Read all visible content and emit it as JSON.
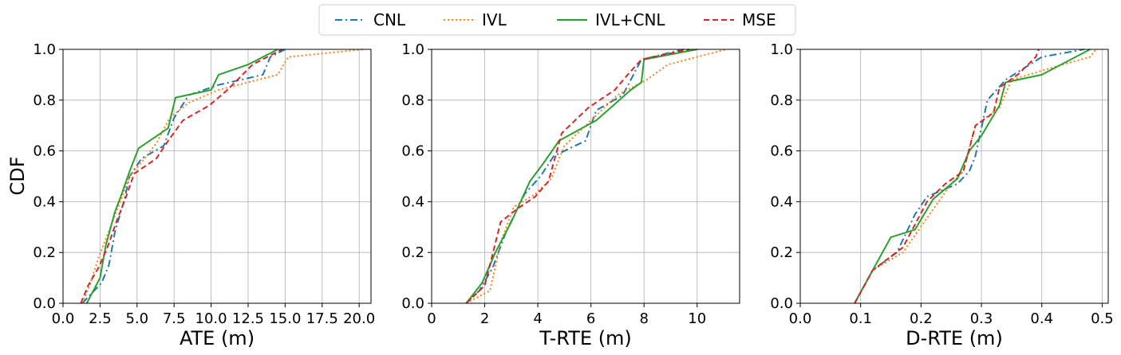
{
  "figure": {
    "ylabel": "CDF"
  },
  "legend": {
    "placement": "top-center",
    "entries": [
      {
        "name": "CNL",
        "color": "#1f77b4",
        "dash": "dashdot"
      },
      {
        "name": "IVL",
        "color": "#ff7f0e",
        "dash": "dotted"
      },
      {
        "name": "IVL+CNL",
        "color": "#2ca02c",
        "dash": "solid"
      },
      {
        "name": "MSE",
        "color": "#d62728",
        "dash": "dashed"
      }
    ]
  },
  "chart_data": [
    {
      "type": "line",
      "xlabel": "ATE (m)",
      "ylabel": "CDF",
      "xlim": [
        0,
        20.8
      ],
      "ylim": [
        0,
        1
      ],
      "grid": true,
      "xticks": [
        0,
        2.5,
        5,
        7.5,
        10,
        12.5,
        15,
        17.5,
        20
      ],
      "xtick_labels": [
        "0.0",
        "2.5",
        "5.0",
        "7.5",
        "10.0",
        "12.5",
        "15.0",
        "17.5",
        "20.0"
      ],
      "yticks": [
        0,
        0.2,
        0.4,
        0.6,
        0.8,
        1.0
      ],
      "ytick_labels": [
        "0.0",
        "0.2",
        "0.4",
        "0.6",
        "0.8",
        "1.0"
      ],
      "series": [
        {
          "name": "CNL",
          "x": [
            1.3,
            2.6,
            3.1,
            3.5,
            4.1,
            4.5,
            5.3,
            6.8,
            7.5,
            8.5,
            10.5,
            13.5,
            14.0,
            15.0
          ],
          "y": [
            0.0,
            0.08,
            0.15,
            0.28,
            0.4,
            0.5,
            0.57,
            0.62,
            0.73,
            0.82,
            0.86,
            0.9,
            0.97,
            1.0
          ]
        },
        {
          "name": "IVL",
          "x": [
            1.3,
            1.8,
            2.4,
            3.2,
            3.8,
            4.5,
            5.5,
            6.3,
            7.2,
            8.5,
            10.5,
            14.5,
            15.2,
            20.3
          ],
          "y": [
            0.0,
            0.07,
            0.18,
            0.3,
            0.39,
            0.5,
            0.57,
            0.63,
            0.73,
            0.79,
            0.84,
            0.9,
            0.97,
            1.0
          ]
        },
        {
          "name": "IVL+CNL",
          "x": [
            1.6,
            2.5,
            2.9,
            3.5,
            3.9,
            4.5,
            5.1,
            7.1,
            7.6,
            10.0,
            10.5,
            12.5,
            14.5
          ],
          "y": [
            0.0,
            0.1,
            0.23,
            0.36,
            0.42,
            0.52,
            0.61,
            0.69,
            0.81,
            0.84,
            0.9,
            0.94,
            1.0
          ]
        },
        {
          "name": "MSE",
          "x": [
            1.2,
            1.7,
            2.4,
            3.0,
            3.6,
            4.2,
            4.8,
            6.3,
            7.1,
            8.1,
            9.9,
            11.1,
            12.8,
            14.8
          ],
          "y": [
            0.0,
            0.07,
            0.14,
            0.22,
            0.32,
            0.41,
            0.51,
            0.57,
            0.64,
            0.72,
            0.78,
            0.84,
            0.94,
            1.0
          ]
        }
      ]
    },
    {
      "type": "line",
      "xlabel": "T-RTE (m)",
      "ylabel": "",
      "xlim": [
        0,
        11.6
      ],
      "ylim": [
        0,
        1
      ],
      "grid": true,
      "xticks": [
        0,
        2,
        4,
        6,
        8,
        10
      ],
      "xtick_labels": [
        "0",
        "2",
        "4",
        "6",
        "8",
        "10"
      ],
      "yticks": [
        0,
        0.2,
        0.4,
        0.6,
        0.8,
        1.0
      ],
      "ytick_labels": [
        "0.0",
        "0.2",
        "0.4",
        "0.6",
        "0.8",
        "1.0"
      ],
      "series": [
        {
          "name": "CNL",
          "x": [
            1.3,
            1.8,
            2.3,
            2.8,
            3.5,
            4.1,
            4.6,
            5.8,
            6.2,
            7.2,
            7.9,
            9.5
          ],
          "y": [
            0.0,
            0.05,
            0.14,
            0.28,
            0.43,
            0.5,
            0.58,
            0.64,
            0.76,
            0.82,
            0.96,
            1.0
          ]
        },
        {
          "name": "IVL",
          "x": [
            1.3,
            2.2,
            2.6,
            3.1,
            3.9,
            4.5,
            5.0,
            6.0,
            7.0,
            8.1,
            8.9,
            11.1
          ],
          "y": [
            0.0,
            0.05,
            0.24,
            0.38,
            0.43,
            0.49,
            0.62,
            0.72,
            0.82,
            0.88,
            0.94,
            1.0
          ]
        },
        {
          "name": "IVL+CNL",
          "x": [
            1.3,
            1.9,
            2.4,
            3.0,
            3.7,
            4.2,
            4.8,
            6.2,
            7.5,
            7.9,
            8.0,
            10.0
          ],
          "y": [
            0.0,
            0.08,
            0.2,
            0.32,
            0.48,
            0.55,
            0.64,
            0.72,
            0.84,
            0.87,
            0.96,
            1.0
          ]
        },
        {
          "name": "MSE",
          "x": [
            1.3,
            2.0,
            2.6,
            3.2,
            3.9,
            4.4,
            4.9,
            5.9,
            6.9,
            7.3,
            7.9,
            9.7
          ],
          "y": [
            0.0,
            0.07,
            0.32,
            0.37,
            0.42,
            0.48,
            0.67,
            0.77,
            0.84,
            0.89,
            0.96,
            1.0
          ]
        }
      ]
    },
    {
      "type": "line",
      "xlabel": "D-RTE (m)",
      "ylabel": "",
      "xlim": [
        0,
        0.51
      ],
      "ylim": [
        0,
        1
      ],
      "grid": true,
      "xticks": [
        0,
        0.1,
        0.2,
        0.3,
        0.4,
        0.5
      ],
      "xtick_labels": [
        "0.0",
        "0.1",
        "0.2",
        "0.3",
        "0.4",
        "0.5"
      ],
      "yticks": [
        0,
        0.2,
        0.4,
        0.6,
        0.8,
        1.0
      ],
      "ytick_labels": [
        "0.0",
        "0.2",
        "0.4",
        "0.6",
        "0.8",
        "1.0"
      ],
      "series": [
        {
          "name": "CNL",
          "x": [
            0.09,
            0.12,
            0.16,
            0.19,
            0.21,
            0.26,
            0.28,
            0.29,
            0.31,
            0.34,
            0.4,
            0.47
          ],
          "y": [
            0.0,
            0.13,
            0.2,
            0.35,
            0.42,
            0.47,
            0.52,
            0.58,
            0.8,
            0.88,
            0.97,
            1.0
          ]
        },
        {
          "name": "IVL",
          "x": [
            0.09,
            0.12,
            0.17,
            0.22,
            0.25,
            0.27,
            0.29,
            0.33,
            0.35,
            0.42,
            0.48,
            0.49
          ],
          "y": [
            0.0,
            0.13,
            0.2,
            0.37,
            0.47,
            0.52,
            0.7,
            0.77,
            0.88,
            0.93,
            0.97,
            1.0
          ]
        },
        {
          "name": "IVL+CNL",
          "x": [
            0.09,
            0.12,
            0.15,
            0.19,
            0.22,
            0.26,
            0.28,
            0.3,
            0.33,
            0.34,
            0.4,
            0.48
          ],
          "y": [
            0.0,
            0.13,
            0.26,
            0.29,
            0.41,
            0.49,
            0.6,
            0.66,
            0.78,
            0.87,
            0.9,
            1.0
          ]
        },
        {
          "name": "MSE",
          "x": [
            0.09,
            0.12,
            0.17,
            0.21,
            0.24,
            0.27,
            0.29,
            0.32,
            0.33,
            0.36,
            0.39,
            0.395
          ],
          "y": [
            0.0,
            0.13,
            0.22,
            0.4,
            0.47,
            0.52,
            0.7,
            0.75,
            0.85,
            0.9,
            0.97,
            1.0
          ]
        }
      ]
    }
  ]
}
